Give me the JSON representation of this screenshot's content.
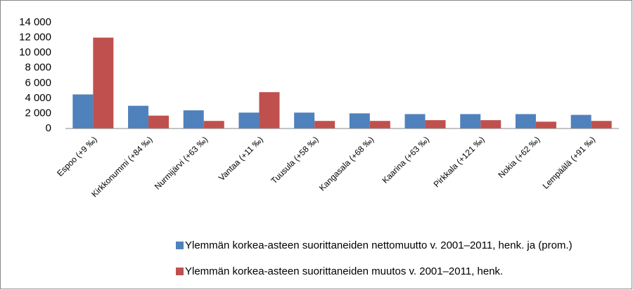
{
  "chart_data": {
    "type": "bar",
    "categories": [
      "Espoo (+9 ‰)",
      "Kirkkonummi (+84 ‰)",
      "Nurmijärvi (+63 ‰)",
      "Vantaa (+11 ‰)",
      "Tuusula (+58 ‰)",
      "Kangasala (+68 ‰)",
      "Kaarina (+63 ‰)",
      "Pirkkala (+121 ‰)",
      "Nokia (+62 ‰)",
      "Lempäälä (+91 ‰)"
    ],
    "series": [
      {
        "name": "Ylemmän korkea-asteen suorittaneiden nettomuutto v. 2001–2011, henk. ja (prom.)",
        "color": "#4f81bd",
        "values": [
          4500,
          3000,
          2400,
          2100,
          2100,
          2000,
          1900,
          1900,
          1900,
          1800
        ]
      },
      {
        "name": "Ylemmän korkea-asteen suorittaneiden muutos v. 2001–2011, henk.",
        "color": "#c0504d",
        "values": [
          12000,
          1700,
          1000,
          4800,
          1000,
          1000,
          1100,
          1100,
          900,
          1000
        ]
      }
    ],
    "ylim": [
      0,
      14000
    ],
    "yticks": [
      0,
      {
        "value": 2000,
        "label": "2 000"
      },
      {
        "value": 4000,
        "label": "4 000"
      },
      {
        "value": 6000,
        "label": "6 000"
      },
      {
        "value": 8000,
        "label": "8 000"
      },
      {
        "value": 10000,
        "label": "10 000"
      },
      {
        "value": 12000,
        "label": "12 000"
      },
      {
        "value": 14000,
        "label": "14 000"
      }
    ],
    "grid": false,
    "legend": "bottom"
  }
}
